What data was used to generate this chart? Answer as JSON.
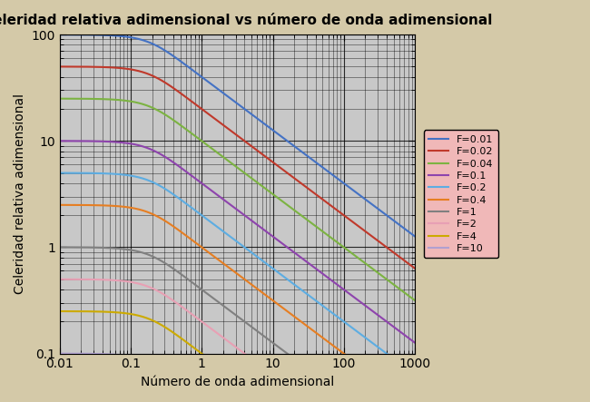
{
  "title": "Celeridad relativa adimensional vs número de onda adimensional",
  "xlabel": "Número de onda adimensional",
  "ylabel": "Celeridad relativa adimensional",
  "xlim": [
    0.01,
    1000
  ],
  "ylim": [
    0.1,
    100
  ],
  "background_color": "#d4c9a8",
  "plot_bg_color": "#c8c8c8",
  "legend_bg_color": "#f0b8b8",
  "froude_numbers": [
    0.01,
    0.02,
    0.04,
    0.1,
    0.2,
    0.4,
    1.0,
    2.0,
    4.0,
    10.0
  ],
  "line_colors": [
    "#4472c4",
    "#c0392b",
    "#7cb342",
    "#8e44ad",
    "#5dade2",
    "#e67e22",
    "#808080",
    "#e8a0b4",
    "#ccaa00",
    "#b0a0d0"
  ],
  "legend_labels": [
    "F=0.01",
    "F=0.02",
    "F=0.04",
    "F=0.1",
    "F=0.2",
    "F=0.4",
    "F=1",
    "F=2",
    "F=4",
    "F=10"
  ]
}
